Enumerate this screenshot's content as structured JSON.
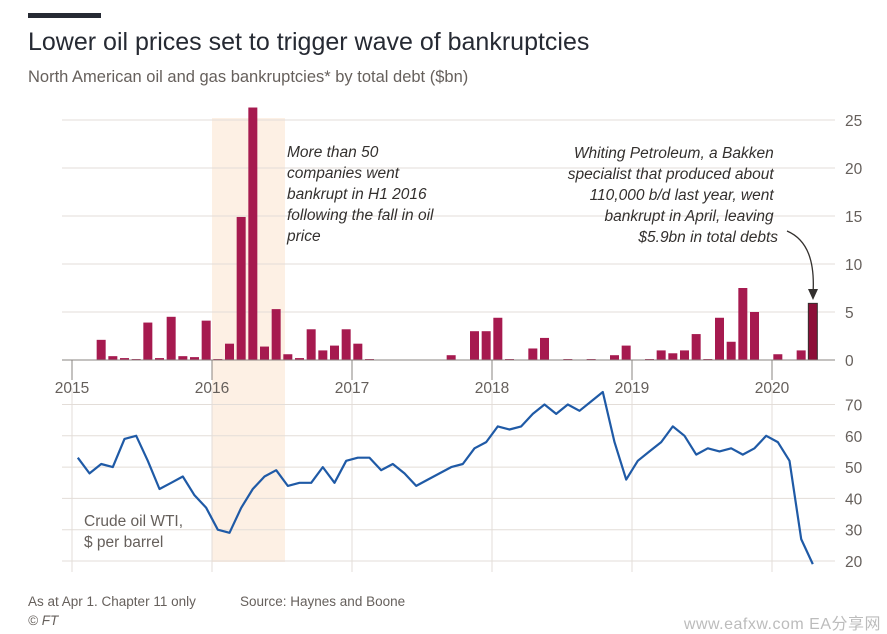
{
  "header": {
    "title": "Lower oil prices set to trigger wave of bankruptcies",
    "subtitle": "North American oil and gas bankruptcies* by total debt ($bn)"
  },
  "footer": {
    "note": "As at Apr 1. Chapter 11 only",
    "source": "Source: Haynes and Boone",
    "credit": "© FT",
    "watermark": "www.eafxw.com  EA分享网"
  },
  "colors": {
    "bar": "#a61a4f",
    "bar_highlight": "#8c0f38",
    "line": "#1f5aa6",
    "shade": "#fdf0e4",
    "grid": "#e3ddd8"
  },
  "chart_data": [
    {
      "type": "bar",
      "title": "North American oil and gas bankruptcies* by total debt ($bn)",
      "xlabel": "",
      "ylabel": "",
      "ylim": [
        0,
        25
      ],
      "yticks": [
        0,
        5,
        10,
        15,
        20,
        25
      ],
      "xticks": [
        "2015",
        "2016",
        "2017",
        "2018",
        "2019",
        "2020"
      ],
      "x": [
        "2015-03",
        "2015-04",
        "2015-05",
        "2015-06",
        "2015-07",
        "2015-08",
        "2015-09",
        "2015-10",
        "2015-11",
        "2015-12",
        "2016-01",
        "2016-02",
        "2016-03",
        "2016-04",
        "2016-05",
        "2016-06",
        "2016-07",
        "2016-08",
        "2016-09",
        "2016-10",
        "2016-11",
        "2016-12",
        "2017-01",
        "2017-02",
        "2017-09",
        "2017-11",
        "2017-12",
        "2018-01",
        "2018-02",
        "2018-04",
        "2018-05",
        "2018-07",
        "2018-09",
        "2018-11",
        "2018-12",
        "2019-02",
        "2019-03",
        "2019-04",
        "2019-05",
        "2019-06",
        "2019-07",
        "2019-08",
        "2019-09",
        "2019-10",
        "2019-11",
        "2020-01",
        "2020-03",
        "2020-04"
      ],
      "values": [
        2.1,
        0.4,
        0.2,
        0.1,
        3.9,
        0.2,
        4.5,
        0.4,
        0.3,
        4.1,
        0.1,
        1.7,
        14.9,
        26.3,
        1.4,
        5.3,
        0.6,
        0.2,
        3.2,
        1.0,
        1.5,
        3.2,
        1.7,
        0.1,
        0.5,
        3.0,
        3.0,
        4.4,
        0.1,
        1.2,
        2.3,
        0.1,
        0.1,
        0.5,
        1.5,
        0.1,
        1.0,
        0.7,
        1.0,
        2.7,
        0.1,
        4.4,
        1.9,
        7.5,
        5.0,
        0.6,
        1.0,
        5.9
      ],
      "highlight": "2020-04",
      "shaded_period": [
        "2016-01",
        "2016-06"
      ],
      "annotations": [
        "More than 50 companies went bankrupt in H1 2016 following the fall in oil price",
        "Whiting Petroleum, a Bakken specialist that produced about 110,000 b/d last year, went bankrupt in April, leaving $5.9bn in total debts"
      ]
    },
    {
      "type": "line",
      "ylim": [
        15,
        75
      ],
      "yticks": [
        20,
        30,
        40,
        50,
        60,
        70
      ],
      "series": [
        {
          "name": "Crude oil WTI, $ per barrel",
          "x": [
            "2015-01",
            "2015-02",
            "2015-03",
            "2015-04",
            "2015-05",
            "2015-06",
            "2015-07",
            "2015-08",
            "2015-09",
            "2015-10",
            "2015-11",
            "2015-12",
            "2016-01",
            "2016-02",
            "2016-03",
            "2016-04",
            "2016-05",
            "2016-06",
            "2016-07",
            "2016-08",
            "2016-09",
            "2016-10",
            "2016-11",
            "2016-12",
            "2017-01",
            "2017-02",
            "2017-03",
            "2017-04",
            "2017-05",
            "2017-06",
            "2017-07",
            "2017-08",
            "2017-09",
            "2017-10",
            "2017-11",
            "2017-12",
            "2018-01",
            "2018-02",
            "2018-03",
            "2018-04",
            "2018-05",
            "2018-06",
            "2018-07",
            "2018-08",
            "2018-09",
            "2018-10",
            "2018-11",
            "2018-12",
            "2019-01",
            "2019-02",
            "2019-03",
            "2019-04",
            "2019-05",
            "2019-06",
            "2019-07",
            "2019-08",
            "2019-09",
            "2019-10",
            "2019-11",
            "2019-12",
            "2020-01",
            "2020-02",
            "2020-03",
            "2020-04"
          ],
          "values": [
            53,
            48,
            51,
            50,
            59,
            60,
            52,
            43,
            45,
            47,
            41,
            37,
            30,
            29,
            37,
            43,
            47,
            49,
            44,
            45,
            45,
            50,
            45,
            52,
            53,
            53,
            49,
            51,
            48,
            44,
            46,
            48,
            50,
            51,
            56,
            58,
            63,
            62,
            63,
            67,
            70,
            67,
            70,
            68,
            71,
            74,
            58,
            46,
            52,
            55,
            58,
            63,
            60,
            54,
            56,
            55,
            56,
            54,
            56,
            60,
            58,
            52,
            27,
            19
          ]
        }
      ]
    }
  ]
}
